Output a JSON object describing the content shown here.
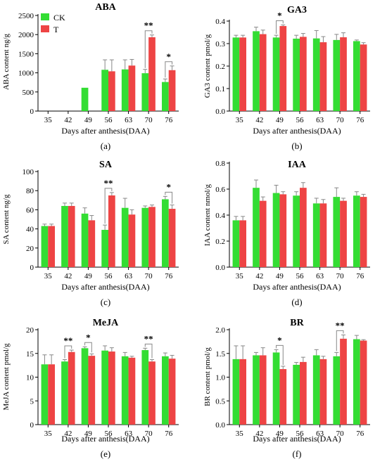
{
  "colors": {
    "CK": "#33dd33",
    "T": "#ee4444"
  },
  "legend": {
    "ck": "CK",
    "t": "T"
  },
  "chart_data": [
    {
      "type": "bar",
      "title": "ABA",
      "ylabel": "ABA content    ng/g",
      "xlabel": "Days after anthesis(DAA)",
      "panel_label": "(a)",
      "categories": [
        "35",
        "42",
        "49",
        "56",
        "63",
        "70",
        "76"
      ],
      "ylim": [
        0,
        2500
      ],
      "yticks": [
        "0",
        "500",
        "1000",
        "1500",
        "2000",
        "2500"
      ],
      "series": [
        {
          "name": "CK",
          "values": [
            0,
            0,
            610,
            1080,
            1090,
            990,
            760
          ],
          "errors": [
            0,
            0,
            0,
            260,
            250,
            100,
            80
          ]
        },
        {
          "name": "T",
          "values": [
            0,
            0,
            0,
            1040,
            1190,
            1930,
            1070
          ],
          "errors": [
            0,
            0,
            0,
            300,
            160,
            60,
            110
          ]
        }
      ],
      "significance": [
        {
          "category": "70",
          "label": "**"
        },
        {
          "category": "76",
          "label": "*"
        }
      ]
    },
    {
      "type": "bar",
      "title": "GA3",
      "ylabel": "GA3 content pmol/g",
      "xlabel": "Days after anthesis(DAA)",
      "panel_label": "(b)",
      "categories": [
        "35",
        "42",
        "49",
        "56",
        "63",
        "70",
        "76"
      ],
      "ylim": [
        0,
        0.4
      ],
      "yticks": [
        "0.0",
        "0.1",
        "0.2",
        "0.3",
        "0.4"
      ],
      "series": [
        {
          "name": "CK",
          "values": [
            0.327,
            0.355,
            0.327,
            0.322,
            0.323,
            0.316,
            0.311
          ],
          "errors": [
            0.01,
            0.018,
            0.01,
            0.015,
            0.035,
            0.025,
            0.005
          ]
        },
        {
          "name": "T",
          "values": [
            0.327,
            0.342,
            0.378,
            0.33,
            0.306,
            0.328,
            0.296
          ],
          "errors": [
            0.01,
            0.018,
            0.005,
            0.015,
            0.025,
            0.02,
            0.008
          ]
        }
      ],
      "significance": [
        {
          "category": "49",
          "label": "*"
        }
      ]
    },
    {
      "type": "bar",
      "title": "SA",
      "ylabel": "SA content ng/g",
      "xlabel": "Days after anthesis(DAA)",
      "panel_label": "(c)",
      "categories": [
        "35",
        "42",
        "49",
        "56",
        "63",
        "70",
        "76"
      ],
      "ylim": [
        0,
        100
      ],
      "yticks": [
        "0",
        "20",
        "40",
        "60",
        "80",
        "100"
      ],
      "series": [
        {
          "name": "CK",
          "values": [
            43,
            64,
            56,
            39,
            62,
            62,
            71
          ],
          "errors": [
            2,
            3,
            6,
            5,
            10,
            2,
            3
          ]
        },
        {
          "name": "T",
          "values": [
            43,
            64,
            49,
            75,
            55,
            63,
            61
          ],
          "errors": [
            2,
            3,
            5,
            3,
            5,
            2,
            4
          ]
        }
      ],
      "significance": [
        {
          "category": "56",
          "label": "**"
        },
        {
          "category": "76",
          "label": "*"
        }
      ]
    },
    {
      "type": "bar",
      "title": "IAA",
      "ylabel": "IAA content nmol/g",
      "xlabel": "Days after anthesis(DAA)",
      "panel_label": "(d)",
      "categories": [
        "35",
        "42",
        "49",
        "56",
        "63",
        "70",
        "76"
      ],
      "ylim": [
        0,
        0.8
      ],
      "yticks": [
        "0.0",
        "0.2",
        "0.4",
        "0.6",
        "0.8"
      ],
      "series": [
        {
          "name": "CK",
          "values": [
            0.36,
            0.61,
            0.57,
            0.55,
            0.49,
            0.54,
            0.55
          ],
          "errors": [
            0.03,
            0.06,
            0.06,
            0.03,
            0.04,
            0.07,
            0.03
          ]
        },
        {
          "name": "T",
          "values": [
            0.36,
            0.51,
            0.56,
            0.61,
            0.49,
            0.51,
            0.54
          ],
          "errors": [
            0.03,
            0.03,
            0.02,
            0.04,
            0.03,
            0.02,
            0.02
          ]
        }
      ],
      "significance": []
    },
    {
      "type": "bar",
      "title": "MeJA",
      "ylabel": "MeJA content pmol/g",
      "xlabel": "Days after anthesis(DAA)",
      "panel_label": "(e)",
      "categories": [
        "35",
        "42",
        "49",
        "56",
        "63",
        "70",
        "76"
      ],
      "ylim": [
        0,
        20
      ],
      "yticks": [
        "0",
        "5",
        "10",
        "15",
        "20"
      ],
      "series": [
        {
          "name": "CK",
          "values": [
            12.7,
            13.3,
            16.1,
            15.6,
            14.4,
            15.7,
            14.4
          ],
          "errors": [
            2.0,
            0.4,
            0.3,
            1.0,
            0.8,
            0.4,
            0.7
          ]
        },
        {
          "name": "T",
          "values": [
            12.7,
            15.3,
            14.5,
            15.4,
            14.1,
            13.3,
            13.9
          ],
          "errors": [
            2.0,
            0.4,
            0.4,
            0.8,
            0.3,
            0.4,
            0.7
          ]
        }
      ],
      "significance": [
        {
          "category": "42",
          "label": "**"
        },
        {
          "category": "49",
          "label": "*"
        },
        {
          "category": "70",
          "label": "**"
        }
      ]
    },
    {
      "type": "bar",
      "title": "BR",
      "ylabel": "BR content pmol/g",
      "xlabel": "Days after anthesis(DAA)",
      "panel_label": "(f)",
      "categories": [
        "35",
        "42",
        "49",
        "56",
        "63",
        "70",
        "76"
      ],
      "ylim": [
        0,
        2.0
      ],
      "yticks": [
        "0.0",
        "0.5",
        "1.0",
        "1.5",
        "2.0"
      ],
      "series": [
        {
          "name": "CK",
          "values": [
            1.38,
            1.46,
            1.52,
            1.26,
            1.46,
            1.44,
            1.8
          ],
          "errors": [
            0.28,
            0.06,
            0.06,
            0.05,
            0.12,
            0.08,
            0.08
          ]
        },
        {
          "name": "T",
          "values": [
            1.38,
            1.46,
            1.17,
            1.32,
            1.38,
            1.81,
            1.77
          ],
          "errors": [
            0.28,
            0.16,
            0.06,
            0.1,
            0.06,
            0.08,
            0.02
          ]
        }
      ],
      "significance": [
        {
          "category": "49",
          "label": "*"
        },
        {
          "category": "70",
          "label": "**"
        }
      ]
    }
  ]
}
